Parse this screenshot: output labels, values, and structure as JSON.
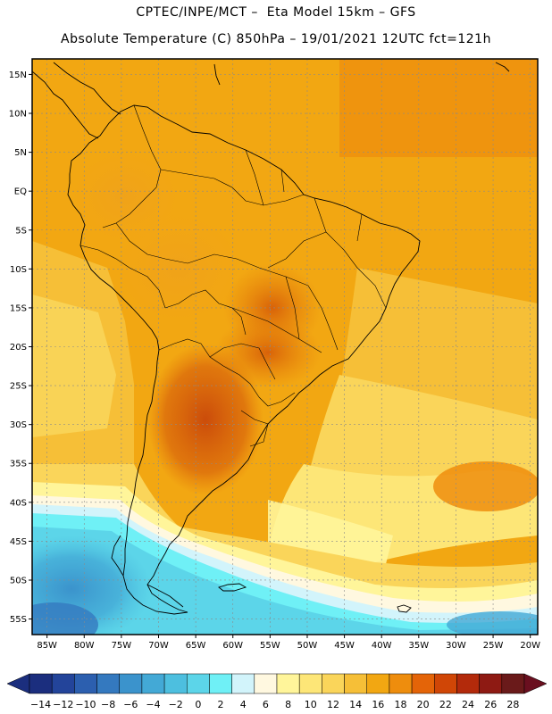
{
  "header": {
    "line1": "CPTEC/INPE/MCT –  Eta Model 15km – GFS",
    "line2": "Absolute Temperature (C) 850hPa – 19/01/2021 12UTC fct=121h"
  },
  "axes": {
    "lat_ticks": [
      "15N",
      "10N",
      "5N",
      "EQ",
      "5S",
      "10S",
      "15S",
      "20S",
      "25S",
      "30S",
      "35S",
      "40S",
      "45S",
      "50S",
      "55S"
    ],
    "lat_values": [
      15,
      10,
      5,
      0,
      -5,
      -10,
      -15,
      -20,
      -25,
      -30,
      -35,
      -40,
      -45,
      -50,
      -55
    ],
    "lon_ticks": [
      "85W",
      "80W",
      "75W",
      "70W",
      "65W",
      "60W",
      "55W",
      "50W",
      "45W",
      "40W",
      "35W",
      "30W",
      "25W",
      "20W"
    ],
    "lon_values": [
      -85,
      -80,
      -75,
      -70,
      -65,
      -60,
      -55,
      -50,
      -45,
      -40,
      -35,
      -30,
      -25,
      -20
    ],
    "lat_range": [
      -57,
      17
    ],
    "lon_range": [
      -87,
      -19
    ]
  },
  "colorbar": {
    "labels": [
      "-14",
      "-12",
      "-10",
      "-8",
      "-6",
      "-4",
      "-2",
      "0",
      "2",
      "4",
      "6",
      "8",
      "10",
      "12",
      "14",
      "16",
      "18",
      "20",
      "22",
      "24",
      "26",
      "28"
    ],
    "colors": [
      "#1b2e7e",
      "#23449a",
      "#2c5faf",
      "#3479bf",
      "#3b93cc",
      "#43a9d6",
      "#4dbfdf",
      "#5cd5e9",
      "#6ff0f6",
      "#d2f4fb",
      "#fff8e0",
      "#fff59a",
      "#fde677",
      "#fad55a",
      "#f6bf37",
      "#f2a712",
      "#ee8d0d",
      "#e46408",
      "#d04606",
      "#b32a0b",
      "#8e1a13",
      "#6a1a1a"
    ],
    "under_color": "#1b2e7e",
    "over_color": "#6a0f1f"
  }
}
